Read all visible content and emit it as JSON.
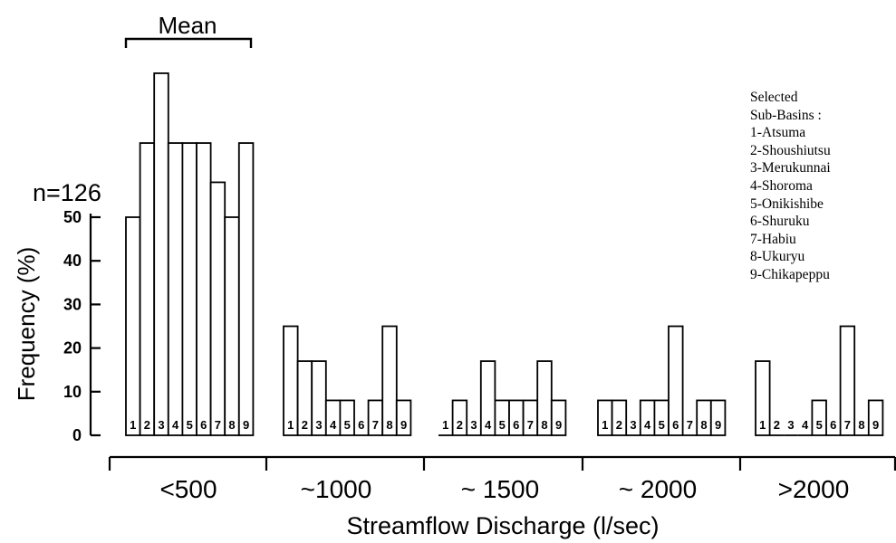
{
  "chart_data": {
    "type": "bar",
    "title": "",
    "xlabel": "Streamflow Discharge (l/sec)",
    "ylabel": "Frequency (%)",
    "ylim": [
      0,
      80
    ],
    "yticks": [
      0,
      10,
      20,
      30,
      40,
      50
    ],
    "groups": [
      "<500",
      "~1000",
      "~ 1500",
      "~ 2000",
      ">2000"
    ],
    "bar_labels": [
      "1",
      "2",
      "3",
      "4",
      "5",
      "6",
      "7",
      "8",
      "9"
    ],
    "series": [
      {
        "group": "<500",
        "values": [
          50,
          67,
          83,
          67,
          67,
          67,
          58,
          50,
          67
        ]
      },
      {
        "group": "~1000",
        "values": [
          25,
          17,
          17,
          8,
          8,
          0,
          8,
          25,
          8
        ]
      },
      {
        "group": "~ 1500",
        "values": [
          0,
          8,
          0,
          17,
          8,
          8,
          8,
          17,
          8
        ]
      },
      {
        "group": "~ 2000",
        "values": [
          8,
          8,
          0,
          8,
          8,
          25,
          0,
          8,
          8
        ]
      },
      {
        "group": ">2000",
        "values": [
          17,
          0,
          0,
          0,
          8,
          0,
          25,
          0,
          8
        ]
      }
    ],
    "annotations": {
      "sample_size": "n=126",
      "bracket_label": "Mean"
    },
    "legend": {
      "placement": "top-right",
      "lines": [
        "Selected",
        "Sub-Basins :",
        "1-Atsuma",
        "2-Shoushiutsu",
        "3-Merukunnai",
        "4-Shoroma",
        "5-Onikishibe",
        "6-Shuruku",
        "7-Habiu",
        "8-Ukuryu",
        "9-Chikapeppu"
      ]
    }
  }
}
